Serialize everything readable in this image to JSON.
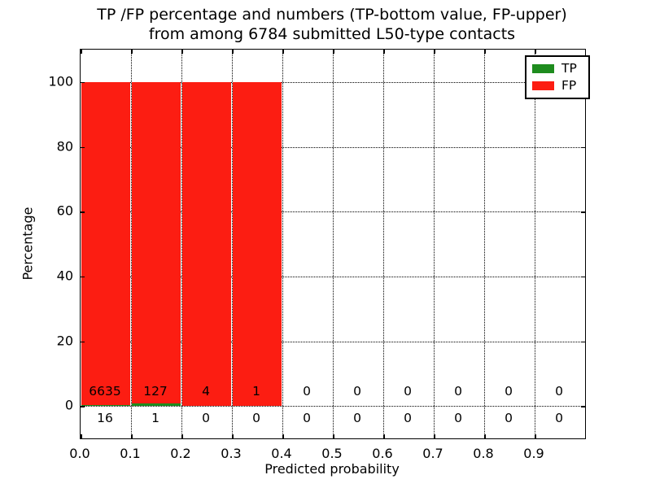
{
  "chart_data": {
    "type": "bar",
    "stacked": true,
    "title_line1": "TP /FP percentage and numbers (TP-bottom value, FP-upper)",
    "title_line2": "from among 6784 submitted L50-type contacts",
    "xlabel": "Predicted probability",
    "ylabel": "Percentage",
    "xlim": [
      0.0,
      1.0
    ],
    "ylim": [
      -10,
      110
    ],
    "bin_width": 0.1,
    "bin_edges": [
      0.0,
      0.1,
      0.2,
      0.3,
      0.4,
      0.5,
      0.6,
      0.7,
      0.8,
      0.9,
      1.0
    ],
    "xtick_values": [
      0.0,
      0.1,
      0.2,
      0.3,
      0.4,
      0.5,
      0.6,
      0.7,
      0.8,
      0.9
    ],
    "xtick_labels": [
      "0.0",
      "0.1",
      "0.2",
      "0.3",
      "0.4",
      "0.5",
      "0.6",
      "0.7",
      "0.8",
      "0.9"
    ],
    "ytick_values": [
      0,
      20,
      40,
      60,
      80,
      100
    ],
    "ytick_labels": [
      "0",
      "20",
      "40",
      "60",
      "80",
      "100"
    ],
    "grid": {
      "style": "dotted",
      "x": true,
      "y": true
    },
    "series": [
      {
        "name": "TP",
        "color": "#1e8c1e",
        "counts": [
          16,
          1,
          0,
          0,
          0,
          0,
          0,
          0,
          0,
          0
        ],
        "pct": [
          0.24,
          0.78,
          0,
          0,
          0,
          0,
          0,
          0,
          0,
          0
        ]
      },
      {
        "name": "FP",
        "color": "#fc1d12",
        "counts": [
          6635,
          127,
          4,
          1,
          0,
          0,
          0,
          0,
          0,
          0
        ],
        "pct": [
          99.76,
          99.22,
          100,
          100,
          0,
          0,
          0,
          0,
          0,
          0
        ]
      }
    ],
    "annotations": {
      "fp_row_counts": [
        "6635",
        "127",
        "4",
        "1",
        "0",
        "0",
        "0",
        "0",
        "0",
        "0"
      ],
      "tp_row_counts": [
        "16",
        "1",
        "0",
        "0",
        "0",
        "0",
        "0",
        "0",
        "0",
        "0"
      ]
    },
    "legend": {
      "position": "upper right",
      "entries": [
        {
          "label": "TP",
          "color": "#1e8c1e"
        },
        {
          "label": "FP",
          "color": "#fc1d12"
        }
      ]
    }
  }
}
